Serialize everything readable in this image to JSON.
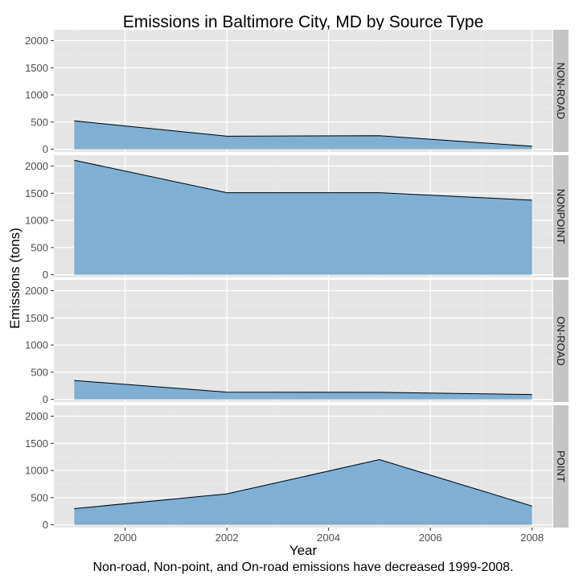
{
  "chart_data": {
    "type": "area",
    "title": "Emissions in Baltimore City, MD by Source Type",
    "xlabel": "Year",
    "ylabel": "Emissions (tons)",
    "caption": "Non-road, Non-point, and On-road emissions have decreased 1999-2008.",
    "x": [
      1999,
      2002,
      2005,
      2008
    ],
    "xlim": [
      1998.6,
      2008.4
    ],
    "ylim": [
      -50,
      2200
    ],
    "x_ticks": [
      2000,
      2002,
      2004,
      2006,
      2008
    ],
    "x_tick_labels": [
      "2000",
      "2002",
      "2004",
      "2006",
      "2008"
    ],
    "y_ticks": [
      0,
      500,
      1000,
      1500,
      2000
    ],
    "y_tick_labels": [
      "0",
      "500",
      "1000",
      "1500",
      "2000"
    ],
    "grid": true,
    "facets": [
      {
        "label": "NON-ROAD",
        "values": [
          523,
          241,
          249,
          55
        ]
      },
      {
        "label": "NONPOINT",
        "values": [
          2108,
          1510,
          1510,
          1373
        ]
      },
      {
        "label": "ON-ROAD",
        "values": [
          347,
          134,
          130,
          88
        ]
      },
      {
        "label": "POINT",
        "values": [
          297,
          570,
          1200,
          345
        ]
      }
    ],
    "colors": {
      "fill": "#7fafd3",
      "line": "#000000",
      "panel_bg": "#e5e5e5",
      "strip_bg": "#c5c5c5",
      "grid_major": "#ffffff",
      "grid_minor": "#ebebeb",
      "tick_label": "#4d4d4d"
    }
  }
}
